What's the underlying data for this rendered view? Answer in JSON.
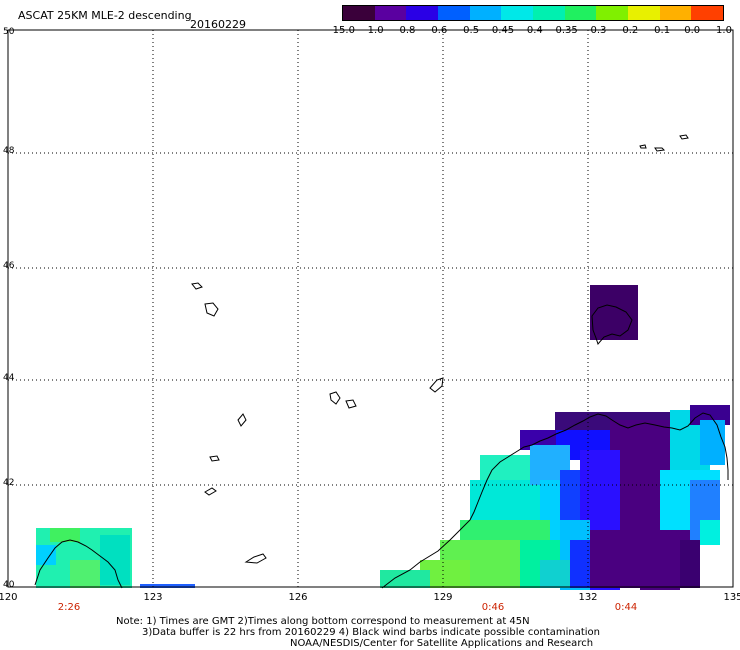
{
  "header": {
    "title": "ASCAT 25KM MLE-2 descending",
    "date": "20160229"
  },
  "colorbar": {
    "colors": [
      "#3a003a",
      "#5a00a0",
      "#2a00e6",
      "#0060ff",
      "#00b0ff",
      "#00e8e8",
      "#00f0b0",
      "#20f060",
      "#80f000",
      "#e8f000",
      "#ffb000",
      "#ff4000"
    ],
    "ticks": [
      "-15.0",
      "-1.0",
      "-0.8",
      "-0.6",
      "-0.5",
      "-0.45",
      "-0.4",
      "-0.35",
      "-0.3",
      "-0.2",
      "-0.1",
      "0.0",
      "1.0"
    ]
  },
  "map": {
    "lat_labels": [
      "50",
      "48",
      "46",
      "44",
      "42",
      "40"
    ],
    "lon_labels": [
      "120",
      "123",
      "126",
      "129",
      "132",
      "135"
    ],
    "times": [
      "2:26",
      "0:46",
      "0:44"
    ]
  },
  "notes": {
    "line1": "Note: 1) Times are GMT 2)Times along bottom correspond to measurement at 45N",
    "line2": "3)Data buffer is 22 hrs from 20160229 4) Black wind barbs indicate possible contamination",
    "line3": "NOAA/NESDIS/Center for Satellite Applications and Research"
  }
}
